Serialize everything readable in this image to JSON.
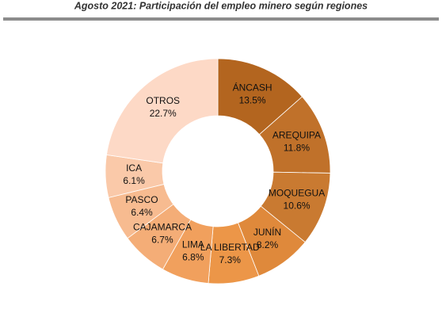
{
  "chart_data": {
    "type": "donut",
    "title": "Agosto 2021: Participación del empleo minero según regiones",
    "categories": [
      "ÁNCASH",
      "AREQUIPA",
      "MOQUEGUA",
      "JUNÍN",
      "LA LIBERTAD",
      "LIMA",
      "CAJAMARCA",
      "PASCO",
      "ICA",
      "OTROS"
    ],
    "values": [
      13.5,
      11.8,
      10.6,
      8.2,
      7.3,
      6.8,
      6.7,
      6.4,
      6.1,
      22.7
    ],
    "value_labels": [
      "13.5%",
      "11.8%",
      "10.6%",
      "8.2%",
      "7.3%",
      "6.8%",
      "6.7%",
      "6.4%",
      "6.1%",
      "22.7%"
    ],
    "colors": [
      "#b3651f",
      "#c0712a",
      "#c97a31",
      "#df893b",
      "#ec9648",
      "#f1a05d",
      "#f4ad77",
      "#f7bb90",
      "#fac9a9",
      "#fdd9c6"
    ]
  }
}
